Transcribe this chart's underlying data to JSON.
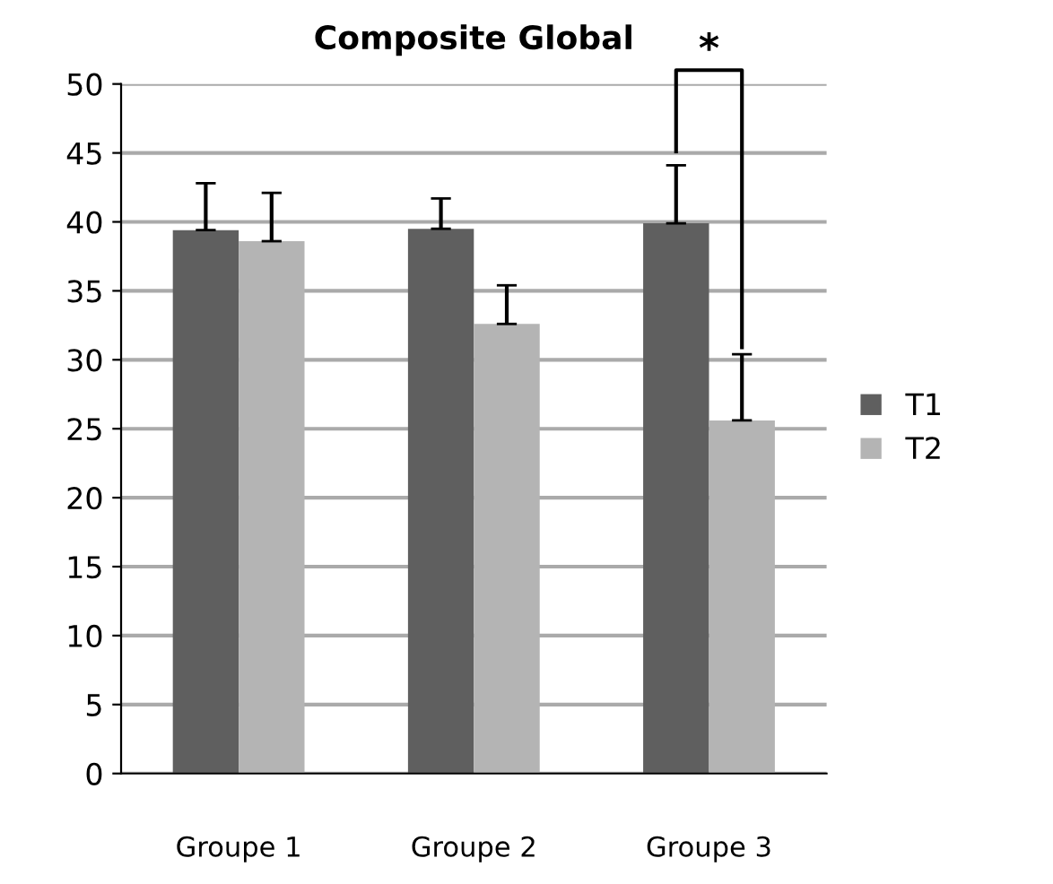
{
  "chart_data": {
    "type": "bar",
    "title": "Composite Global",
    "categories": [
      "Groupe 1",
      "Groupe 2",
      "Groupe 3"
    ],
    "series": [
      {
        "name": "T1",
        "color": "#5f5f5f",
        "values": [
          39.4,
          39.5,
          39.9
        ],
        "errors": [
          [
            39.4,
            42.8
          ],
          [
            39.5,
            41.7
          ],
          [
            39.9,
            44.1
          ]
        ]
      },
      {
        "name": "T2",
        "color": "#b4b4b4",
        "values": [
          38.6,
          32.6,
          25.6
        ],
        "errors": [
          [
            38.6,
            42.1
          ],
          [
            32.6,
            35.4
          ],
          [
            25.6,
            30.4
          ]
        ]
      }
    ],
    "ylim": [
      0,
      50
    ],
    "yticks": [
      0,
      5,
      10,
      15,
      20,
      25,
      30,
      35,
      40,
      45,
      50
    ],
    "grid": "y",
    "legend": "right",
    "annotations": [
      "*"
    ]
  }
}
